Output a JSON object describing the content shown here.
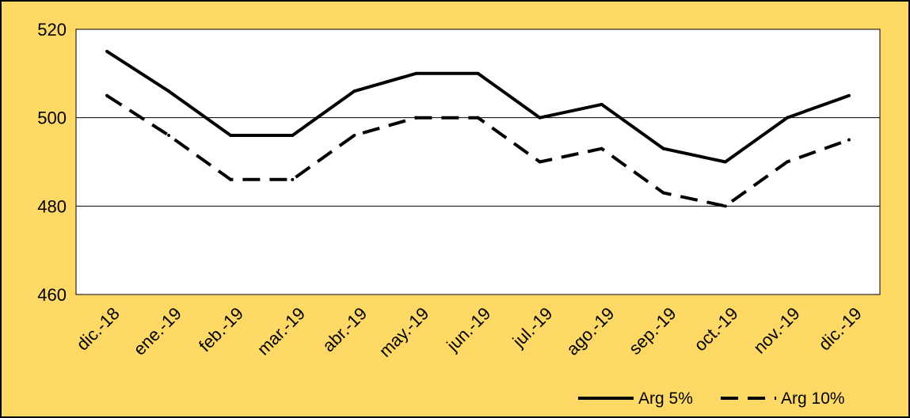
{
  "chart_data": {
    "type": "line",
    "categories": [
      "dic.-18",
      "ene.-19",
      "feb.-19",
      "mar.-19",
      "abr.-19",
      "may.-19",
      "jun.-19",
      "jul.-19",
      "ago.-19",
      "sep.-19",
      "oct.-19",
      "nov.-19",
      "dic.-19"
    ],
    "series": [
      {
        "name": "Arg 5%",
        "values": [
          515,
          506,
          496,
          496,
          506,
          510,
          510,
          500,
          503,
          493,
          490,
          500,
          505
        ],
        "style": "solid",
        "color": "#000000"
      },
      {
        "name": "Arg 10%",
        "values": [
          505,
          496,
          486,
          486,
          496,
          500,
          500,
          490,
          493,
          483,
          480,
          490,
          495
        ],
        "style": "dashed",
        "color": "#000000"
      }
    ],
    "title": "",
    "xlabel": "",
    "ylabel": "",
    "ylim": [
      460,
      520
    ],
    "yticks": [
      460,
      480,
      500,
      520
    ],
    "grid": true,
    "legend_position": "bottom-right",
    "background_color": "#FFD966",
    "plot_background_color": "#FFFFFF"
  }
}
